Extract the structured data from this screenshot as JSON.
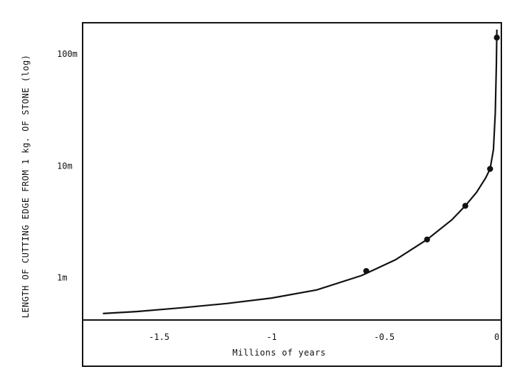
{
  "chart_data": {
    "type": "line",
    "title": "",
    "xlabel": "Millions of years",
    "ylabel": "LENGTH OF CUTTING EDGE FROM 1 kg. OF STONE (log)",
    "xlim": [
      -1.84,
      0.02
    ],
    "ylim": [
      0.42,
      190
    ],
    "yscale": "log",
    "grid": false,
    "x_ticks": [
      {
        "value": -1.5,
        "label": "-1.5"
      },
      {
        "value": -1.0,
        "label": "-1"
      },
      {
        "value": -0.5,
        "label": "-0.5"
      },
      {
        "value": 0.0,
        "label": "0"
      }
    ],
    "y_ticks": [
      {
        "value": 1,
        "label": "1m"
      },
      {
        "value": 10,
        "label": "10m"
      },
      {
        "value": 100,
        "label": "100m"
      }
    ],
    "points": {
      "x": [
        -0.58,
        -0.31,
        -0.14,
        -0.03,
        0.0
      ],
      "y": [
        1.15,
        2.2,
        4.4,
        9.4,
        140
      ]
    },
    "curve": {
      "x": [
        -1.75,
        -1.6,
        -1.4,
        -1.2,
        -1.0,
        -0.8,
        -0.6,
        -0.45,
        -0.31,
        -0.2,
        -0.14,
        -0.09,
        -0.05,
        -0.03,
        -0.015,
        -0.007,
        -0.002,
        0.0
      ],
      "y": [
        0.48,
        0.5,
        0.54,
        0.59,
        0.66,
        0.78,
        1.05,
        1.45,
        2.2,
        3.3,
        4.4,
        5.8,
        7.8,
        9.4,
        14,
        30,
        80,
        165
      ]
    },
    "colors": {
      "line": "#111111",
      "background": "#ffffff"
    }
  }
}
